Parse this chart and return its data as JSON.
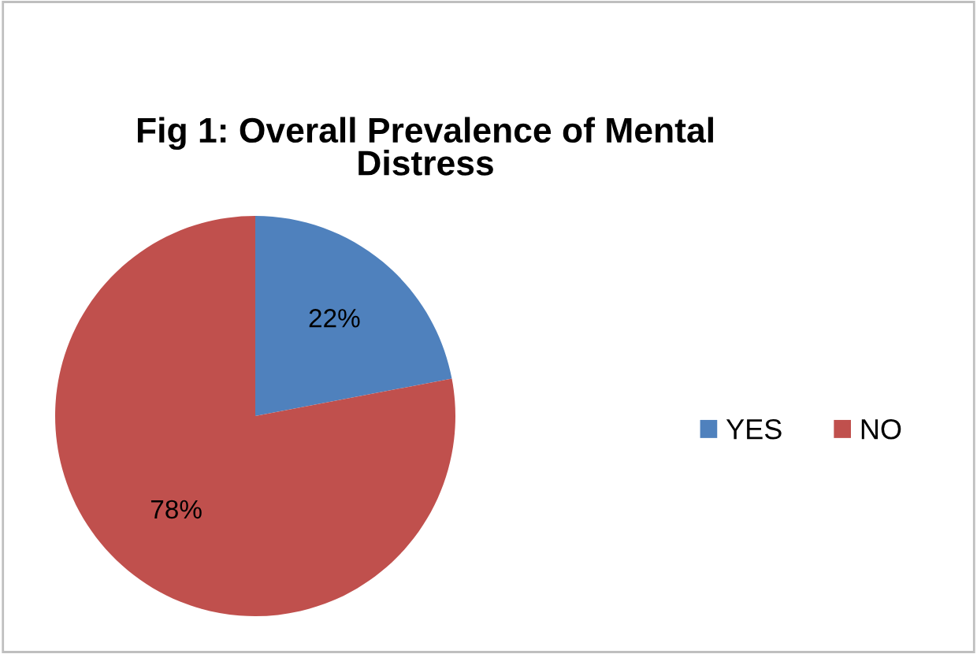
{
  "chart_data": {
    "type": "pie",
    "title": "Fig 1: Overall Prevalence of Mental Distress",
    "categories": [
      "YES",
      "NO"
    ],
    "values": [
      22,
      78
    ],
    "colors": [
      "#4f81bd",
      "#c0504d"
    ],
    "value_labels": [
      "22%",
      "78%"
    ],
    "legend": "right"
  }
}
